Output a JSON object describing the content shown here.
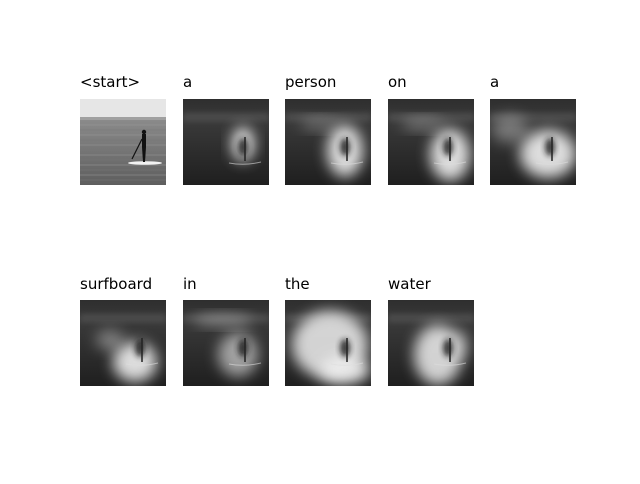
{
  "panels": [
    {
      "label": "<start>"
    },
    {
      "label": "a"
    },
    {
      "label": "person"
    },
    {
      "label": "on"
    },
    {
      "label": "a"
    },
    {
      "label": "surfboard"
    },
    {
      "label": "in"
    },
    {
      "label": "the"
    },
    {
      "label": "water"
    }
  ]
}
